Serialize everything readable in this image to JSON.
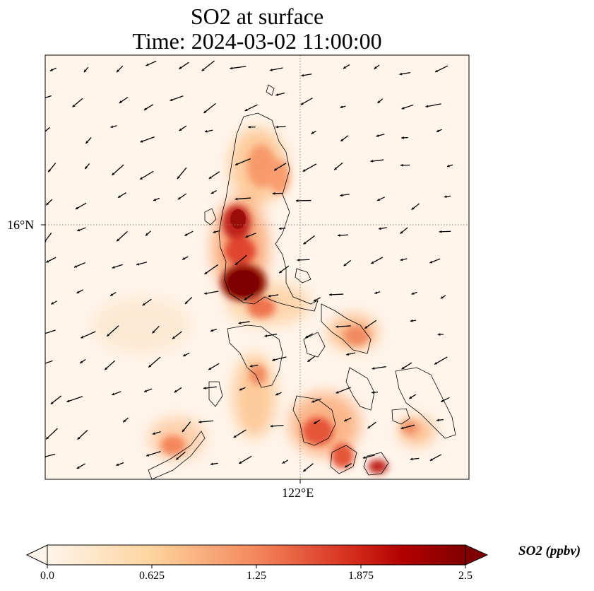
{
  "title": {
    "line1": "SO2 at surface",
    "line2": "Time: 2024-03-02 11:00:00"
  },
  "map": {
    "lat_tick_label": "16°N",
    "lon_tick_label": "122°E",
    "gridlines": "dotted"
  },
  "colorbar": {
    "title": "SO2 (ppbv)",
    "ticks": [
      "0.0",
      "0.625",
      "1.25",
      "1.875",
      "2.5"
    ],
    "min": 0.0,
    "max": 2.5,
    "colormap": [
      "#fff5eb",
      "#fdd49e",
      "#f4875b",
      "#d7301f",
      "#b30000",
      "#7f0000"
    ],
    "extend": "both"
  },
  "colors": {
    "background": "#fff5eb",
    "coastline": "#000000",
    "gridline": "#8a7a6a"
  }
}
